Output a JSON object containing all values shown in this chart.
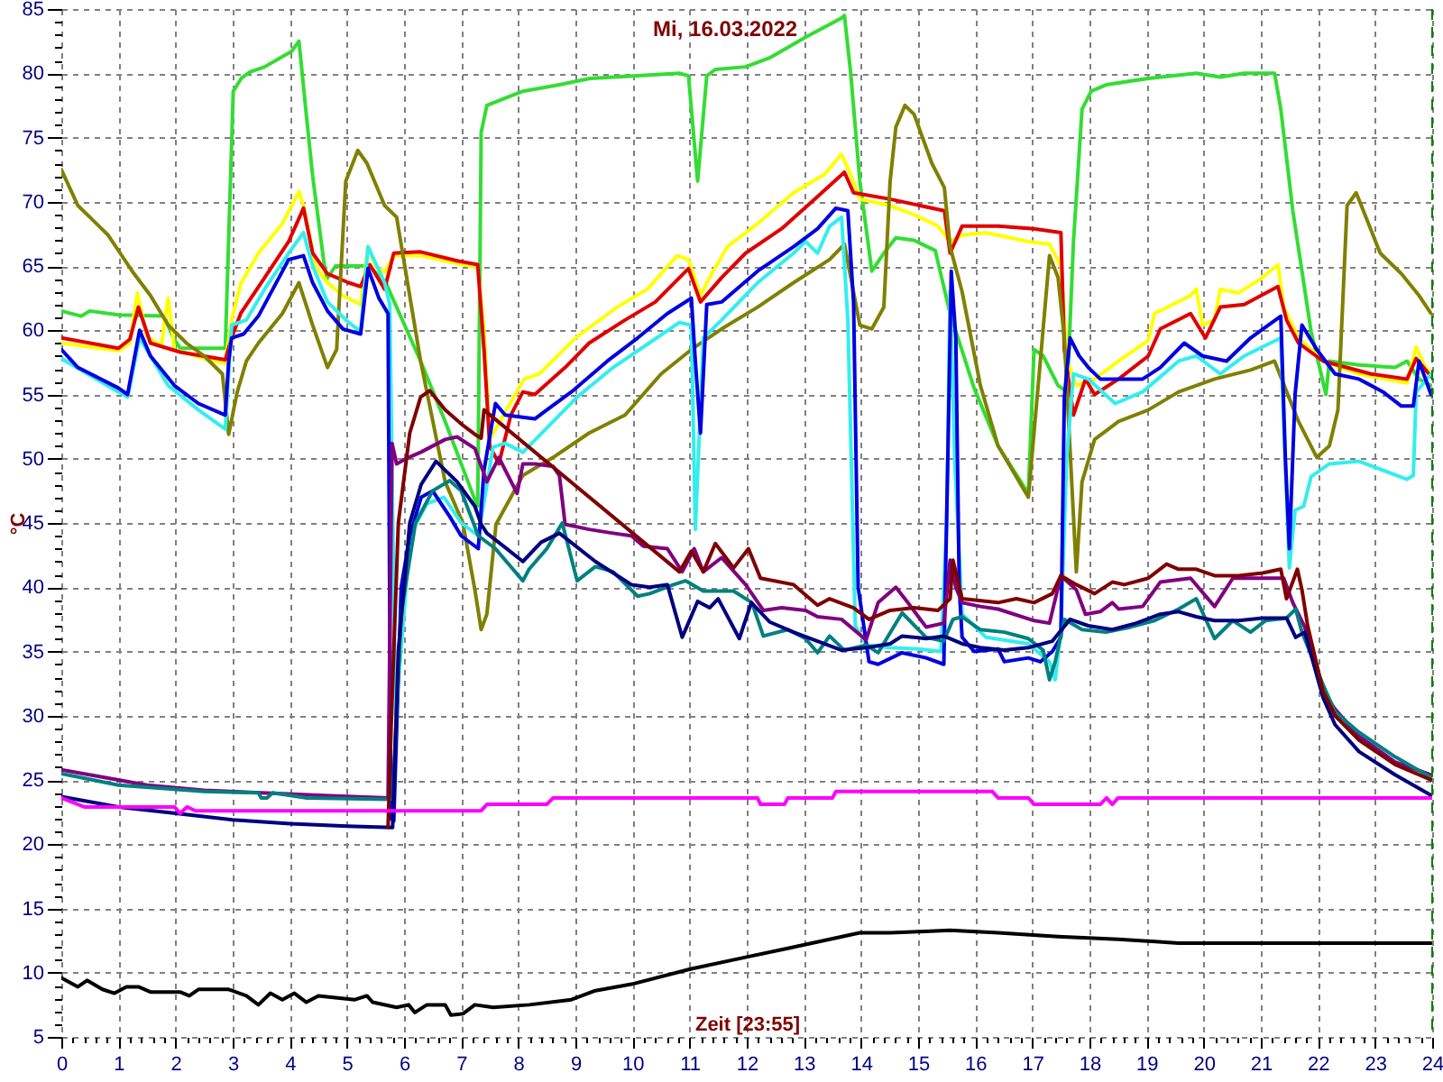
{
  "chart_data": {
    "type": "line",
    "title": "Mi, 16.03.2022",
    "xlabel": "Zeit [23:55]",
    "ylabel": "°C",
    "xlim": [
      0,
      24
    ],
    "ylim": [
      5,
      85
    ],
    "grid": true,
    "xticks": [
      0,
      {
        "value": 0.2,
        "label": null
      },
      {
        "value": 0.4,
        "label": null
      },
      {
        "value": 0.6,
        "label": null
      },
      {
        "value": 0.8,
        "label": null
      },
      1,
      {
        "value": 1.2,
        "label": null
      },
      {
        "value": 1.4,
        "label": null
      },
      {
        "value": 1.6,
        "label": null
      },
      {
        "value": 1.8,
        "label": null
      },
      2,
      {
        "value": 2.2,
        "label": null
      },
      {
        "value": 2.4,
        "label": null
      },
      {
        "value": 2.6,
        "label": null
      },
      {
        "value": 2.8,
        "label": null
      },
      3,
      {
        "value": 3.2,
        "label": null
      },
      {
        "value": 3.4,
        "label": null
      },
      {
        "value": 3.6,
        "label": null
      },
      {
        "value": 3.8,
        "label": null
      },
      4,
      {
        "value": 4.2,
        "label": null
      },
      {
        "value": 4.4,
        "label": null
      },
      {
        "value": 4.6,
        "label": null
      },
      {
        "value": 4.8,
        "label": null
      },
      5,
      {
        "value": 5.2,
        "label": null
      },
      {
        "value": 5.4,
        "label": null
      },
      {
        "value": 5.6,
        "label": null
      },
      {
        "value": 5.8,
        "label": null
      },
      6,
      {
        "value": 6.2,
        "label": null
      },
      {
        "value": 6.4,
        "label": null
      },
      {
        "value": 6.6,
        "label": null
      },
      {
        "value": 6.8,
        "label": null
      },
      7,
      {
        "value": 7.2,
        "label": null
      },
      {
        "value": 7.4,
        "label": null
      },
      {
        "value": 7.6,
        "label": null
      },
      {
        "value": 7.8,
        "label": null
      },
      8,
      {
        "value": 8.2,
        "label": null
      },
      {
        "value": 8.4,
        "label": null
      },
      {
        "value": 8.6,
        "label": null
      },
      {
        "value": 8.8,
        "label": null
      },
      9,
      {
        "value": 9.2,
        "label": null
      },
      {
        "value": 9.4,
        "label": null
      },
      {
        "value": 9.6,
        "label": null
      },
      {
        "value": 9.8,
        "label": null
      },
      10,
      {
        "value": 10.2,
        "label": null
      },
      {
        "value": 10.4,
        "label": null
      },
      {
        "value": 10.6,
        "label": null
      },
      {
        "value": 10.8,
        "label": null
      },
      11,
      {
        "value": 11.2,
        "label": null
      },
      {
        "value": 11.4,
        "label": null
      },
      {
        "value": 11.6,
        "label": null
      },
      {
        "value": 11.8,
        "label": null
      },
      12,
      {
        "value": 12.2,
        "label": null
      },
      {
        "value": 12.4,
        "label": null
      },
      {
        "value": 12.6,
        "label": null
      },
      {
        "value": 12.8,
        "label": null
      },
      13,
      {
        "value": 13.2,
        "label": null
      },
      {
        "value": 13.4,
        "label": null
      },
      {
        "value": 13.6,
        "label": null
      },
      {
        "value": 13.8,
        "label": null
      },
      14,
      {
        "value": 14.2,
        "label": null
      },
      {
        "value": 14.4,
        "label": null
      },
      {
        "value": 14.6,
        "label": null
      },
      {
        "value": 14.8,
        "label": null
      },
      15,
      {
        "value": 15.2,
        "label": null
      },
      {
        "value": 15.4,
        "label": null
      },
      {
        "value": 15.6,
        "label": null
      },
      {
        "value": 15.8,
        "label": null
      },
      16,
      {
        "value": 16.2,
        "label": null
      },
      {
        "value": 16.4,
        "label": null
      },
      {
        "value": 16.6,
        "label": null
      },
      {
        "value": 16.8,
        "label": null
      },
      17,
      {
        "value": 17.2,
        "label": null
      },
      {
        "value": 17.4,
        "label": null
      },
      {
        "value": 17.6,
        "label": null
      },
      {
        "value": 17.8,
        "label": null
      },
      18,
      {
        "value": 18.2,
        "label": null
      },
      {
        "value": 18.4,
        "label": null
      },
      {
        "value": 18.6,
        "label": null
      },
      {
        "value": 18.8,
        "label": null
      },
      19,
      {
        "value": 19.2,
        "label": null
      },
      {
        "value": 19.4,
        "label": null
      },
      {
        "value": 19.6,
        "label": null
      },
      {
        "value": 19.8,
        "label": null
      },
      20,
      {
        "value": 20.2,
        "label": null
      },
      {
        "value": 20.4,
        "label": null
      },
      {
        "value": 20.6,
        "label": null
      },
      {
        "value": 20.8,
        "label": null
      },
      21,
      {
        "value": 21.2,
        "label": null
      },
      {
        "value": 21.4,
        "label": null
      },
      {
        "value": 21.6,
        "label": null
      },
      {
        "value": 21.8,
        "label": null
      },
      22,
      {
        "value": 22.2,
        "label": null
      },
      {
        "value": 22.4,
        "label": null
      },
      {
        "value": 22.6,
        "label": null
      },
      {
        "value": 22.8,
        "label": null
      },
      23,
      {
        "value": 23.2,
        "label": null
      },
      {
        "value": 23.4,
        "label": null
      },
      {
        "value": 23.6,
        "label": null
      },
      {
        "value": 23.8,
        "label": null
      },
      24
    ],
    "yticks": [
      5,
      {
        "value": 6,
        "label": null
      },
      {
        "value": 7,
        "label": null
      },
      {
        "value": 8,
        "label": null
      },
      {
        "value": 9,
        "label": null
      },
      10,
      {
        "value": 11,
        "label": null
      },
      {
        "value": 12,
        "label": null
      },
      {
        "value": 13,
        "label": null
      },
      {
        "value": 14,
        "label": null
      },
      15,
      {
        "value": 16,
        "label": null
      },
      {
        "value": 17,
        "label": null
      },
      {
        "value": 18,
        "label": null
      },
      {
        "value": 19,
        "label": null
      },
      20,
      {
        "value": 21,
        "label": null
      },
      {
        "value": 22,
        "label": null
      },
      {
        "value": 23,
        "label": null
      },
      {
        "value": 24,
        "label": null
      },
      25,
      {
        "value": 26,
        "label": null
      },
      {
        "value": 27,
        "label": null
      },
      {
        "value": 28,
        "label": null
      },
      {
        "value": 29,
        "label": null
      },
      30,
      {
        "value": 31,
        "label": null
      },
      {
        "value": 32,
        "label": null
      },
      {
        "value": 33,
        "label": null
      },
      {
        "value": 34,
        "label": null
      },
      35,
      {
        "value": 36,
        "label": null
      },
      {
        "value": 37,
        "label": null
      },
      {
        "value": 38,
        "label": null
      },
      {
        "value": 39,
        "label": null
      },
      40,
      {
        "value": 41,
        "label": null
      },
      {
        "value": 42,
        "label": null
      },
      {
        "value": 43,
        "label": null
      },
      {
        "value": 44,
        "label": null
      },
      45,
      {
        "value": 46,
        "label": null
      },
      {
        "value": 47,
        "label": null
      },
      {
        "value": 48,
        "label": null
      },
      {
        "value": 49,
        "label": null
      },
      50,
      {
        "value": 51,
        "label": null
      },
      {
        "value": 52,
        "label": null
      },
      {
        "value": 53,
        "label": null
      },
      {
        "value": 54,
        "label": null
      },
      55,
      {
        "value": 56,
        "label": null
      },
      {
        "value": 57,
        "label": null
      },
      {
        "value": 58,
        "label": null
      },
      {
        "value": 59,
        "label": null
      },
      60,
      {
        "value": 61,
        "label": null
      },
      {
        "value": 62,
        "label": null
      },
      {
        "value": 63,
        "label": null
      },
      {
        "value": 64,
        "label": null
      },
      65,
      {
        "value": 66,
        "label": null
      },
      {
        "value": 67,
        "label": null
      },
      {
        "value": 68,
        "label": null
      },
      {
        "value": 69,
        "label": null
      },
      70,
      {
        "value": 71,
        "label": null
      },
      {
        "value": 72,
        "label": null
      },
      {
        "value": 73,
        "label": null
      },
      {
        "value": 74,
        "label": null
      },
      75,
      {
        "value": 76,
        "label": null
      },
      {
        "value": 77,
        "label": null
      },
      {
        "value": 78,
        "label": null
      },
      {
        "value": 79,
        "label": null
      },
      80,
      {
        "value": 81,
        "label": null
      },
      {
        "value": 82,
        "label": null
      },
      {
        "value": 83,
        "label": null
      },
      {
        "value": 84,
        "label": null
      },
      85
    ],
    "ref_lines": [
      {
        "axis": "x",
        "value": 24,
        "color": "#008000",
        "line_style": "dashed"
      }
    ],
    "series": [
      {
        "color": "#33dd33",
        "x": [
          0,
          0.35,
          0.5,
          1.0,
          1.8,
          1.95,
          2.08,
          2.87,
          3.01,
          3.15,
          3.3,
          3.56,
          4.03,
          4.16,
          4.3,
          4.4,
          4.6,
          4.65,
          4.8,
          5.4,
          5.7,
          6.29,
          6.72,
          7.24,
          7.29,
          7.35,
          7.45,
          8.08,
          8.72,
          9.25,
          10.09,
          10.82,
          10.98,
          11.14,
          11.3,
          11.45,
          11.98,
          12.4,
          13.03,
          13.66,
          13.71,
          13.82,
          13.98,
          14.19,
          14.4,
          14.61,
          14.93,
          15.3,
          15.56,
          15.98,
          16.4,
          16.93,
          17.03,
          17.19,
          17.45,
          17.61,
          17.72,
          17.87,
          18.03,
          18.29,
          19.03,
          19.87,
          20.29,
          20.71,
          21.24,
          21.35,
          21.56,
          21.88,
          22.14,
          22.2,
          22.72,
          23.35,
          23.56,
          23.77,
          23.98
        ],
        "values": [
          61.5,
          61.1,
          61.5,
          61.2,
          61.1,
          59.5,
          58.6,
          58.6,
          78.6,
          79.6,
          80.1,
          80.5,
          81.7,
          82.5,
          76.3,
          72,
          65.2,
          64,
          65,
          65,
          63.5,
          57.6,
          52.9,
          46.8,
          46.3,
          75.4,
          77.5,
          78.6,
          79.1,
          79.6,
          79.8,
          80,
          79.8,
          71.6,
          79.8,
          80.3,
          80.5,
          81.2,
          82.8,
          84.3,
          84.5,
          80,
          71.6,
          64.6,
          66,
          67.2,
          67,
          66.2,
          61.3,
          55.5,
          51,
          47.3,
          58.5,
          58,
          55.7,
          55.2,
          66.9,
          77.2,
          78.6,
          79.1,
          79.6,
          80,
          79.7,
          80,
          80,
          77.2,
          69.3,
          59.9,
          55,
          57.6,
          57.3,
          57.1,
          57.6,
          56.2,
          55.7
        ]
      },
      {
        "color": "#ffff00",
        "x": [
          0,
          1.0,
          1.2,
          1.33,
          1.5,
          1.75,
          1.87,
          1.98,
          2.5,
          2.87,
          2.98,
          3.14,
          3.45,
          3.87,
          4.16,
          4.24,
          4.45,
          4.66,
          4.93,
          5.24,
          5.37,
          5.5,
          5.66,
          5.82,
          6.29,
          6.93,
          7.29,
          7.4,
          7.5,
          8.1,
          8.37,
          9.0,
          9.73,
          10.26,
          10.78,
          10.98,
          11.19,
          11.35,
          11.66,
          12.19,
          12.82,
          13.35,
          13.66,
          13.82,
          13.98,
          14.51,
          14.93,
          15.35,
          15.56,
          15.77,
          16.19,
          16.93,
          17.3,
          17.5,
          17.61,
          17.77,
          18.09,
          18.51,
          19.03,
          19.14,
          19.77,
          19.87,
          19.98,
          20.19,
          20.29,
          20.61,
          21.03,
          21.3,
          21.4,
          21.66,
          22.09,
          22.72,
          23.56,
          23.72,
          23.88,
          23.98
        ],
        "values": [
          59.0,
          58.4,
          59,
          62.9,
          59.5,
          58.8,
          62.5,
          58.5,
          57.8,
          57.4,
          60.8,
          63.6,
          66,
          68.3,
          70.8,
          69.7,
          65,
          63.7,
          62.7,
          62,
          66.5,
          65,
          64.5,
          65.8,
          65.8,
          65.2,
          64.9,
          60,
          51.5,
          56.2,
          56.6,
          59.4,
          61.8,
          63.2,
          65.8,
          65.5,
          62.7,
          64.1,
          66.5,
          68.3,
          70.7,
          72.1,
          73.7,
          72.1,
          70.2,
          69.7,
          69,
          68.1,
          66.9,
          67.4,
          67.6,
          66.9,
          66.7,
          65,
          57.6,
          55.7,
          56.2,
          57.6,
          59.2,
          61.3,
          62.7,
          63.2,
          60.4,
          60.8,
          63.2,
          62.9,
          64.1,
          65.1,
          61.8,
          59.4,
          57.6,
          56.6,
          55.9,
          58.7,
          57.1,
          56.6
        ]
      },
      {
        "color": "#e00000",
        "x": [
          0,
          1.0,
          1.2,
          1.35,
          1.56,
          2.08,
          2.87,
          2.98,
          3.14,
          3.56,
          3.98,
          4.24,
          4.4,
          4.66,
          5.03,
          5.24,
          5.4,
          5.66,
          5.82,
          6.29,
          6.93,
          7.29,
          7.4,
          7.5,
          7.66,
          7.87,
          8.08,
          8.29,
          8.82,
          9.24,
          9.87,
          10.4,
          10.98,
          11.19,
          11.56,
          11.98,
          12.61,
          13.24,
          13.71,
          13.87,
          14.51,
          15.46,
          15.56,
          15.77,
          16.4,
          17.03,
          17.5,
          17.56,
          17.72,
          17.93,
          18.09,
          18.51,
          19.03,
          19.24,
          19.77,
          20.03,
          20.29,
          20.71,
          21.3,
          21.45,
          21.66,
          22.09,
          22.93,
          23.56,
          23.72,
          23.98
        ],
        "values": [
          59.4,
          58.6,
          59.3,
          61.8,
          59,
          58.3,
          57.7,
          59.4,
          61.3,
          64.1,
          66.9,
          69.5,
          66,
          64.4,
          63.7,
          63.4,
          65.1,
          63.2,
          66,
          66.1,
          65.4,
          65.1,
          58.5,
          51,
          49.6,
          53.4,
          55.2,
          55,
          57.1,
          59,
          60.8,
          62.2,
          64.8,
          62.2,
          64.1,
          66,
          67.9,
          70.4,
          72.3,
          70.7,
          70.2,
          69.3,
          66,
          68.1,
          68.1,
          67.9,
          67.6,
          58.5,
          53.4,
          56.2,
          55,
          56.2,
          58,
          60.1,
          61.3,
          59.4,
          61.8,
          62,
          63.4,
          60.8,
          59,
          57.6,
          56.6,
          56.2,
          57.8,
          56.4
        ]
      },
      {
        "color": "#808000",
        "x": [
          0,
          0.29,
          0.5,
          0.82,
          1.03,
          1.24,
          1.56,
          1.87,
          2.19,
          2.5,
          2.82,
          2.93,
          3.08,
          3.24,
          3.45,
          3.87,
          4.16,
          4.4,
          4.66,
          4.82,
          4.98,
          5.19,
          5.35,
          5.66,
          5.87,
          6.29,
          6.72,
          7.03,
          7.24,
          7.35,
          7.45,
          7.61,
          8.08,
          8.61,
          9.24,
          9.87,
          10.5,
          11.03,
          11.56,
          12.19,
          12.82,
          13.45,
          13.71,
          13.98,
          14.19,
          14.4,
          14.51,
          14.61,
          14.77,
          14.93,
          15.24,
          15.46,
          15.56,
          15.77,
          16.09,
          16.4,
          16.93,
          17.14,
          17.3,
          17.45,
          17.56,
          17.77,
          17.87,
          18.09,
          18.51,
          19.03,
          19.56,
          19.87,
          20.19,
          20.82,
          21.24,
          21.66,
          21.98,
          22.2,
          22.35,
          22.51,
          22.67,
          23.09,
          23.46,
          23.77,
          23.98
        ],
        "values": [
          72.5,
          69.7,
          68.8,
          67.4,
          66,
          64.6,
          62.7,
          60.4,
          59,
          58,
          56.6,
          51.9,
          55.2,
          57.6,
          59,
          61.3,
          63.7,
          60.4,
          57.1,
          58.5,
          71.6,
          74,
          73,
          69.7,
          68.8,
          57.6,
          48.2,
          45,
          39.8,
          36.7,
          37.9,
          44.9,
          48.7,
          50.1,
          52,
          53.4,
          56.6,
          58.5,
          60.1,
          61.8,
          63.7,
          65.5,
          66.7,
          60.4,
          60.1,
          61.8,
          71.6,
          75.8,
          77.5,
          76.8,
          73,
          71.1,
          66.5,
          63,
          55.7,
          51,
          47,
          57.6,
          65.8,
          64.1,
          59.4,
          41.2,
          48.2,
          51.5,
          52.9,
          53.8,
          55.2,
          55.7,
          56.2,
          56.9,
          57.6,
          52.9,
          50.1,
          51,
          53.8,
          69.7,
          70.7,
          66,
          64.4,
          62.7,
          61.3
        ]
      },
      {
        "color": "#33eeee",
        "x": [
          0,
          1.0,
          1.16,
          1.37,
          1.87,
          2.4,
          2.87,
          2.98,
          3.24,
          3.56,
          3.98,
          4.24,
          4.4,
          4.66,
          5.03,
          5.24,
          5.37,
          5.66,
          5.75,
          5.85,
          6.0,
          6.1,
          6.4,
          6.7,
          7.0,
          7.3,
          7.56,
          7.77,
          8.08,
          8.5,
          9.03,
          9.66,
          10.29,
          10.82,
          11.03,
          11.1,
          11.24,
          11.56,
          12.19,
          12.82,
          13.03,
          13.24,
          13.45,
          13.66,
          13.77,
          13.9,
          14.1,
          14.5,
          15.0,
          15.4,
          15.5,
          15.56,
          15.64,
          15.77,
          16.19,
          16.93,
          17.3,
          17.4,
          17.5,
          17.6,
          17.72,
          17.98,
          18.45,
          18.93,
          19.56,
          19.87,
          20.29,
          20.71,
          21.35,
          21.4,
          21.5,
          21.6,
          21.75,
          21.88,
          22.2,
          22.72,
          23.56,
          23.67,
          23.72,
          23.98
        ],
        "values": [
          57.8,
          55.2,
          54.8,
          59.4,
          55.7,
          53.8,
          52.3,
          60.4,
          60.8,
          63.2,
          66,
          67.6,
          65,
          62.2,
          60.6,
          59.9,
          66.5,
          63.7,
          62,
          30,
          38,
          44,
          46.5,
          47,
          45,
          44,
          50.9,
          51.2,
          50.5,
          52.4,
          54.8,
          57.1,
          59,
          60.6,
          60.4,
          44.5,
          59.4,
          60.8,
          63.7,
          66,
          66.9,
          66,
          68.1,
          68.8,
          60.8,
          37,
          35.5,
          35.3,
          35.2,
          35,
          45,
          63,
          50,
          37.9,
          36.1,
          35.6,
          34.2,
          32.8,
          36.6,
          50,
          56.6,
          56.2,
          54.3,
          55.2,
          57.6,
          58,
          56.6,
          58,
          59.4,
          52.9,
          41.5,
          46,
          46.3,
          48.6,
          49.6,
          49.8,
          48.4,
          48.7,
          55.2,
          56.6
        ]
      },
      {
        "color": "#0000e0",
        "x": [
          0,
          0.29,
          1.0,
          1.16,
          1.37,
          1.56,
          1.98,
          2.4,
          2.87,
          2.93,
          2.98,
          3.19,
          3.45,
          3.98,
          4.24,
          4.4,
          4.66,
          4.93,
          5.24,
          5.37,
          5.56,
          5.72,
          5.77,
          5.82,
          5.95,
          6.1,
          6.3,
          6.5,
          6.8,
          7.0,
          7.3,
          7.4,
          7.6,
          7.77,
          8.29,
          8.5,
          8.93,
          9.56,
          10.09,
          10.61,
          11.03,
          11.1,
          11.19,
          11.3,
          11.56,
          12.19,
          12.82,
          13.24,
          13.56,
          13.77,
          13.87,
          13.95,
          14.14,
          14.3,
          14.72,
          15.14,
          15.45,
          15.52,
          15.58,
          15.66,
          15.72,
          15.77,
          15.98,
          16.4,
          16.51,
          16.93,
          17.14,
          17.35,
          17.5,
          17.56,
          17.66,
          17.82,
          17.98,
          18.19,
          18.93,
          19.24,
          19.66,
          19.98,
          20.4,
          20.82,
          21.35,
          21.43,
          21.5,
          21.6,
          21.72,
          21.98,
          22.3,
          22.72,
          23.14,
          23.46,
          23.67,
          23.77,
          23.98
        ],
        "values": [
          58.5,
          57.1,
          55.5,
          55,
          60,
          58,
          55.7,
          54.3,
          53.4,
          57.6,
          59.4,
          59.7,
          61.1,
          65.5,
          65.8,
          63.7,
          61.5,
          60.1,
          59.7,
          64.8,
          62.5,
          61.3,
          22,
          21.8,
          40,
          44,
          47,
          47.5,
          45.5,
          44,
          43,
          49.1,
          54.3,
          53.4,
          53.1,
          53.8,
          55.2,
          57.6,
          59.4,
          61.3,
          62.5,
          57.6,
          52,
          62,
          62.2,
          64.6,
          66.5,
          67.9,
          69.5,
          69.3,
          62.2,
          40,
          34.2,
          34,
          34.9,
          34.5,
          34,
          50,
          64.6,
          59.4,
          40,
          36.1,
          35,
          35.2,
          34.2,
          34.5,
          34.2,
          35,
          36.1,
          54.8,
          59.4,
          58,
          57.1,
          56.2,
          56.2,
          57.1,
          59,
          58,
          57.6,
          59.4,
          61.1,
          50,
          43,
          55,
          60.4,
          58.5,
          56.6,
          56.2,
          55.2,
          54.1,
          54.1,
          57.6,
          55
        ]
      },
      {
        "color": "#800080",
        "x": [
          0,
          1.0,
          1.5,
          2.5,
          3.5,
          4.5,
          5.72,
          5.79,
          5.87,
          6.08,
          6.29,
          6.72,
          6.93,
          7.24,
          7.45,
          7.66,
          7.98,
          8.08,
          8.29,
          8.61,
          8.72,
          8.82,
          9.24,
          9.66,
          9.98,
          10.19,
          10.61,
          10.87,
          11.08,
          11.24,
          11.56,
          11.98,
          12.29,
          12.61,
          13.03,
          13.24,
          13.66,
          14.09,
          14.3,
          14.61,
          14.82,
          15.14,
          15.45,
          15.56,
          15.66,
          15.77,
          16.09,
          16.4,
          17.03,
          17.3,
          17.5,
          17.77,
          17.93,
          18.19,
          18.4,
          18.51,
          18.93,
          19.24,
          19.77,
          20.19,
          20.51,
          20.93,
          21.4,
          21.56,
          21.77,
          22.09,
          22.3,
          22.72,
          23.35,
          23.98
        ],
        "values": [
          25.8,
          25,
          24.6,
          24.2,
          24,
          23.8,
          23.6,
          51.2,
          49.6,
          50.1,
          50.5,
          51.5,
          51.7,
          50.8,
          48.2,
          50.1,
          47.3,
          49.6,
          49.6,
          49.4,
          48.7,
          44.9,
          44.5,
          44.2,
          44,
          43.2,
          43,
          41.2,
          43,
          41.2,
          42.3,
          40.2,
          38.2,
          38.4,
          38.2,
          37.7,
          37.5,
          35.9,
          38.8,
          40,
          38.8,
          36.9,
          37.2,
          42.1,
          40,
          38.8,
          38.5,
          38.3,
          37.4,
          37.2,
          40.9,
          39.8,
          37.9,
          38.1,
          38.8,
          38.3,
          38.5,
          40.4,
          40.7,
          38.5,
          40.7,
          40.7,
          40.7,
          38.8,
          36.9,
          31.9,
          30.5,
          28.4,
          26.4,
          25.4
        ]
      },
      {
        "color": "#008080",
        "x": [
          0,
          1.0,
          2.5,
          3.45,
          3.5,
          3.6,
          3.7,
          4.3,
          5.8,
          5.95,
          6.2,
          6.5,
          6.8,
          7.0,
          7.3,
          7.6,
          8.08,
          8.19,
          8.5,
          8.77,
          9.03,
          9.35,
          9.66,
          10.09,
          10.3,
          10.72,
          10.93,
          11.24,
          11.77,
          12.09,
          12.29,
          12.72,
          13.03,
          13.24,
          13.45,
          13.71,
          14.09,
          14.3,
          14.72,
          15.14,
          15.45,
          15.61,
          15.77,
          16.09,
          16.51,
          16.93,
          17.19,
          17.3,
          17.4,
          17.56,
          17.87,
          18.29,
          18.72,
          19.14,
          19.56,
          19.87,
          20.19,
          20.51,
          20.82,
          21.08,
          21.45,
          21.61,
          21.72,
          22.09,
          22.3,
          22.72,
          23.35,
          23.98
        ],
        "values": [
          25.5,
          24.6,
          24.1,
          24,
          23.6,
          23.6,
          24,
          23.6,
          23.5,
          38,
          45,
          47.5,
          48.3,
          47.5,
          44,
          43,
          40.5,
          41.4,
          43,
          45,
          40.5,
          41.6,
          41.2,
          39.3,
          39.5,
          40.2,
          40.5,
          39.7,
          39.7,
          38.8,
          36.2,
          36.7,
          36,
          34.9,
          36.2,
          35.1,
          35.5,
          34.9,
          38,
          36.1,
          35.8,
          37.5,
          37.7,
          36.7,
          36.5,
          36,
          35.1,
          32.8,
          34.2,
          37.5,
          36.7,
          36.5,
          36.9,
          37.4,
          38.3,
          39.1,
          36,
          37.4,
          36.5,
          37.4,
          37.6,
          38.3,
          36.5,
          32.4,
          30.3,
          28.7,
          26.8,
          25.2
        ]
      },
      {
        "color": "#000080",
        "x": [
          0,
          1.0,
          2.0,
          3.0,
          4.0,
          5.0,
          5.8,
          5.9,
          6.1,
          6.3,
          6.56,
          6.93,
          7.24,
          7.35,
          7.45,
          7.77,
          8.08,
          8.4,
          8.72,
          9.35,
          9.98,
          10.3,
          10.61,
          10.87,
          11.14,
          11.35,
          11.5,
          11.87,
          12.08,
          12.4,
          12.82,
          13.24,
          13.66,
          14.09,
          14.51,
          14.72,
          15.14,
          15.45,
          15.77,
          16.09,
          16.51,
          16.93,
          17.35,
          17.66,
          17.98,
          18.4,
          18.82,
          19.24,
          19.56,
          19.87,
          20.19,
          20.61,
          21.03,
          21.45,
          21.61,
          21.77,
          22.09,
          22.3,
          22.72,
          23.35,
          23.98
        ],
        "values": [
          23.7,
          22.9,
          22.4,
          21.9,
          21.6,
          21.4,
          21.3,
          35,
          45,
          48,
          49.8,
          48.2,
          46.3,
          44.9,
          44.2,
          43.1,
          42,
          43.5,
          44.2,
          42,
          40.2,
          40,
          40.2,
          36.1,
          38.9,
          38.4,
          39.1,
          36,
          38.8,
          37.3,
          36.5,
          35.8,
          35.1,
          35.3,
          35.6,
          36.2,
          36,
          36.2,
          35.6,
          35.3,
          35.1,
          35.3,
          35.8,
          37.5,
          37,
          36.7,
          37.2,
          37.9,
          38.1,
          37.7,
          37.4,
          37.4,
          37.6,
          37.6,
          36.1,
          36.5,
          31.4,
          29.3,
          27.2,
          25.4,
          23.8
        ]
      },
      {
        "color": "#800000",
        "x": [
          5.72,
          5.78,
          5.9,
          6.1,
          6.29,
          6.45,
          6.72,
          7.03,
          7.24,
          7.35,
          7.4,
          10.82,
          11.03,
          11.24,
          11.45,
          11.77,
          12.03,
          12.24,
          12.82,
          13.24,
          13.45,
          13.87,
          14.14,
          14.51,
          14.93,
          15.35,
          15.56,
          15.61,
          15.77,
          16.4,
          16.72,
          17.03,
          17.35,
          17.5,
          17.77,
          18.09,
          18.4,
          18.61,
          19.03,
          19.35,
          19.56,
          19.87,
          20.19,
          20.61,
          21.03,
          21.35,
          21.45,
          21.64,
          21.72,
          21.82,
          22.09,
          22.3,
          22.72,
          23.35,
          23.98
        ],
        "values": [
          21.3,
          30,
          45,
          52,
          54.8,
          55.3,
          53.8,
          52.6,
          51.9,
          51.6,
          53.8,
          41.2,
          42.8,
          41.2,
          43.4,
          41.5,
          43,
          40.7,
          40.2,
          38.6,
          39.1,
          38.4,
          37.5,
          38.2,
          38.4,
          38.2,
          39.1,
          42.1,
          39.1,
          38.8,
          39.1,
          38.8,
          39.5,
          40.9,
          40.2,
          39.5,
          40.4,
          40.2,
          40.7,
          41.8,
          41.4,
          41.4,
          40.9,
          40.9,
          41.1,
          41.4,
          39.1,
          41.4,
          39.8,
          37,
          31.9,
          30,
          28.1,
          26.2,
          25
        ]
      },
      {
        "color": "#ff00ff",
        "x": [
          0,
          0.4,
          1.98,
          2.08,
          2.2,
          2.35,
          7.35,
          7.45,
          8.5,
          8.61,
          12.19,
          12.24,
          12.66,
          12.72,
          13.5,
          13.56,
          16.3,
          16.4,
          16.93,
          17.03,
          18.19,
          18.3,
          18.4,
          18.5,
          23.98
        ],
        "values": [
          23.6,
          22.9,
          22.9,
          22.4,
          22.9,
          22.6,
          22.6,
          23.1,
          23.1,
          23.6,
          23.6,
          23.1,
          23.1,
          23.6,
          23.6,
          24.1,
          24.1,
          23.6,
          23.6,
          23.1,
          23.1,
          23.6,
          23.1,
          23.6,
          23.6
        ]
      },
      {
        "color": "#000000",
        "x": [
          0,
          0.29,
          0.45,
          0.72,
          0.93,
          1.14,
          1.35,
          1.56,
          2.08,
          2.24,
          2.4,
          2.93,
          3.24,
          3.45,
          3.66,
          3.87,
          4.08,
          4.29,
          4.5,
          5.14,
          5.35,
          5.45,
          5.87,
          6.08,
          6.19,
          6.4,
          6.72,
          6.82,
          7.03,
          7.24,
          7.56,
          8.19,
          8.93,
          9.35,
          9.98,
          11.03,
          11.98,
          12.72,
          13.45,
          13.98,
          14.51,
          15.03,
          15.56,
          16.4,
          17.45,
          18.51,
          19.56,
          20.29,
          21.66,
          23.98
        ],
        "values": [
          9.6,
          8.9,
          9.4,
          8.7,
          8.4,
          8.9,
          8.9,
          8.5,
          8.5,
          8.2,
          8.7,
          8.7,
          8.2,
          7.5,
          8.4,
          7.9,
          8.4,
          7.7,
          8.2,
          7.9,
          8.2,
          7.7,
          7.3,
          7.5,
          6.9,
          7.5,
          7.5,
          6.7,
          6.8,
          7.5,
          7.3,
          7.5,
          7.9,
          8.6,
          9.1,
          10.3,
          11.2,
          11.9,
          12.6,
          13.1,
          13.1,
          13.2,
          13.3,
          13.1,
          12.8,
          12.6,
          12.3,
          12.3,
          12.3,
          12.3
        ]
      }
    ]
  }
}
